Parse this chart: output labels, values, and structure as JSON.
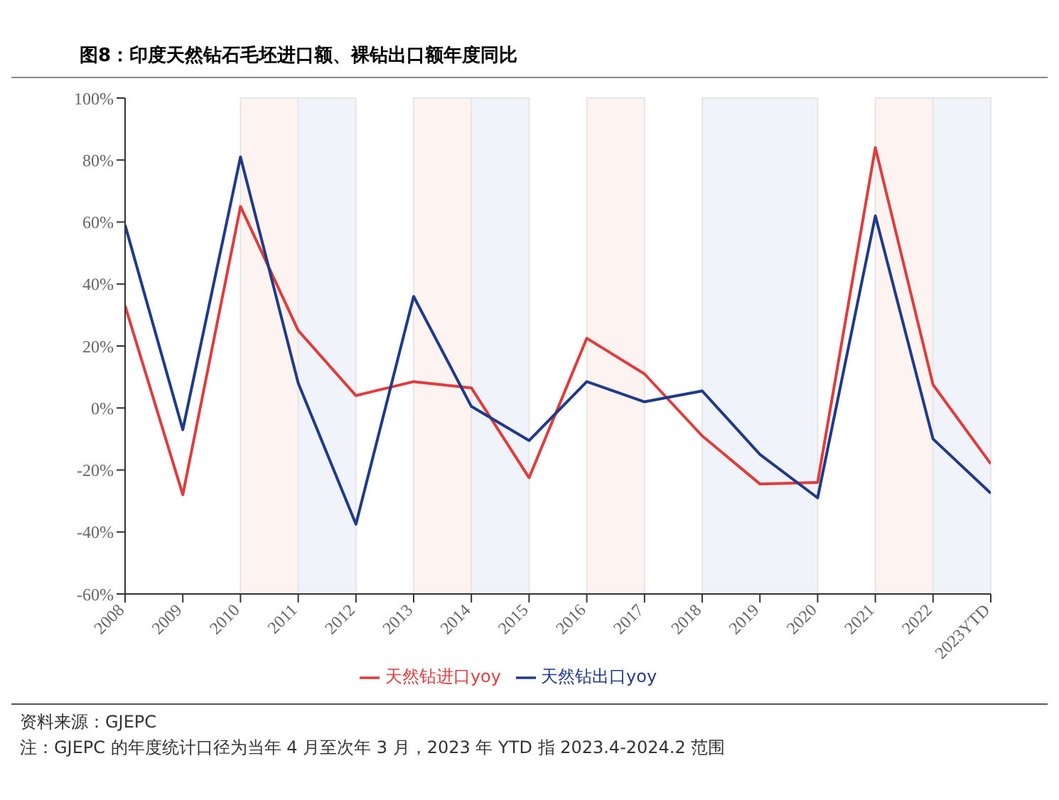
{
  "chart_data": {
    "type": "line",
    "title": "图8：印度天然钻石毛坯进口额、裸钻出口额年度同比",
    "categories": [
      "2008",
      "2009",
      "2010",
      "2011",
      "2012",
      "2013",
      "2014",
      "2015",
      "2016",
      "2017",
      "2018",
      "2019",
      "2020",
      "2021",
      "2022",
      "2023YTD"
    ],
    "series": [
      {
        "name": "天然钻进口yoy",
        "color": "#e03c3c",
        "values": [
          33,
          -28,
          65,
          25,
          4,
          8.5,
          6.5,
          -22.5,
          22.5,
          11,
          -9,
          -24.5,
          -24,
          84,
          7.5,
          -18
        ]
      },
      {
        "name": "天然钻出口yoy",
        "color": "#1f3a8a",
        "values": [
          59,
          -7,
          81,
          8,
          -37.5,
          36,
          0.5,
          -10.5,
          8.5,
          2,
          5.5,
          -15,
          -29,
          62,
          -10,
          -27.5
        ]
      }
    ],
    "ylim": [
      -60,
      100
    ],
    "yticks": [
      {
        "value": -60,
        "label": "-60%"
      },
      {
        "value": -40,
        "label": "-40%"
      },
      {
        "value": -20,
        "label": "-20%"
      },
      {
        "value": 0,
        "label": "0%"
      },
      {
        "value": 20,
        "label": "20%"
      },
      {
        "value": 40,
        "label": "40%"
      },
      {
        "value": 60,
        "label": "60%"
      },
      {
        "value": 80,
        "label": "80%"
      },
      {
        "value": 100,
        "label": "100%"
      }
    ],
    "bands": [
      {
        "axis": "x",
        "from": "2010",
        "to": "2011",
        "color": "#fdf4f1"
      },
      {
        "axis": "x",
        "from": "2011",
        "to": "2012",
        "color": "#f0f4fa"
      },
      {
        "axis": "x",
        "from": "2013",
        "to": "2014",
        "color": "#fdf4f1"
      },
      {
        "axis": "x",
        "from": "2014",
        "to": "2015",
        "color": "#f0f4fa"
      },
      {
        "axis": "x",
        "from": "2016",
        "to": "2017",
        "color": "#fdf4f1"
      },
      {
        "axis": "x",
        "from": "2018",
        "to": "2020",
        "color": "#f0f4fa"
      },
      {
        "axis": "x",
        "from": "2021",
        "to": "2022",
        "color": "#fdf4f1"
      },
      {
        "axis": "x",
        "from": "2022",
        "to": "2023YTD",
        "color": "#f0f4fa"
      }
    ],
    "grid": false,
    "legend": "bottom",
    "marker": "none",
    "line_style": "solid",
    "annotations": [
      "资料来源：GJEPC",
      "注：GJEPC 的年度统计口径为当年 4 月至次年 3 月，2023 年 YTD 指 2023.4-2024.2 范围"
    ]
  }
}
